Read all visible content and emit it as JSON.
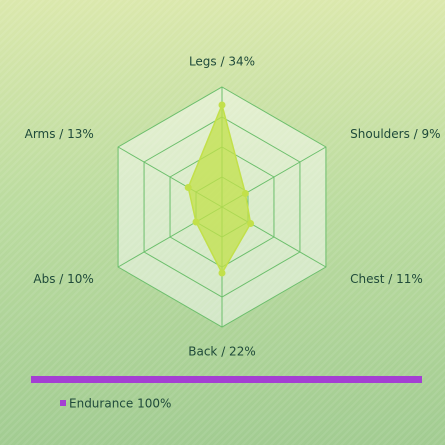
{
  "chart_data": {
    "type": "radar",
    "categories": [
      "Legs / 34%",
      "Shoulders / 9%",
      "Chest / 11%",
      "Back / 22%",
      "Abs / 10%",
      "Arms / 13%"
    ],
    "series": [
      {
        "name": "Endurance 100%",
        "color": "#a43fd3",
        "fill": "#c2e04a",
        "values": [
          34,
          9,
          11,
          22,
          10,
          13
        ]
      }
    ],
    "rlim": [
      0,
      40
    ],
    "rticks": [
      10,
      20,
      30,
      40
    ],
    "grid": true
  }
}
